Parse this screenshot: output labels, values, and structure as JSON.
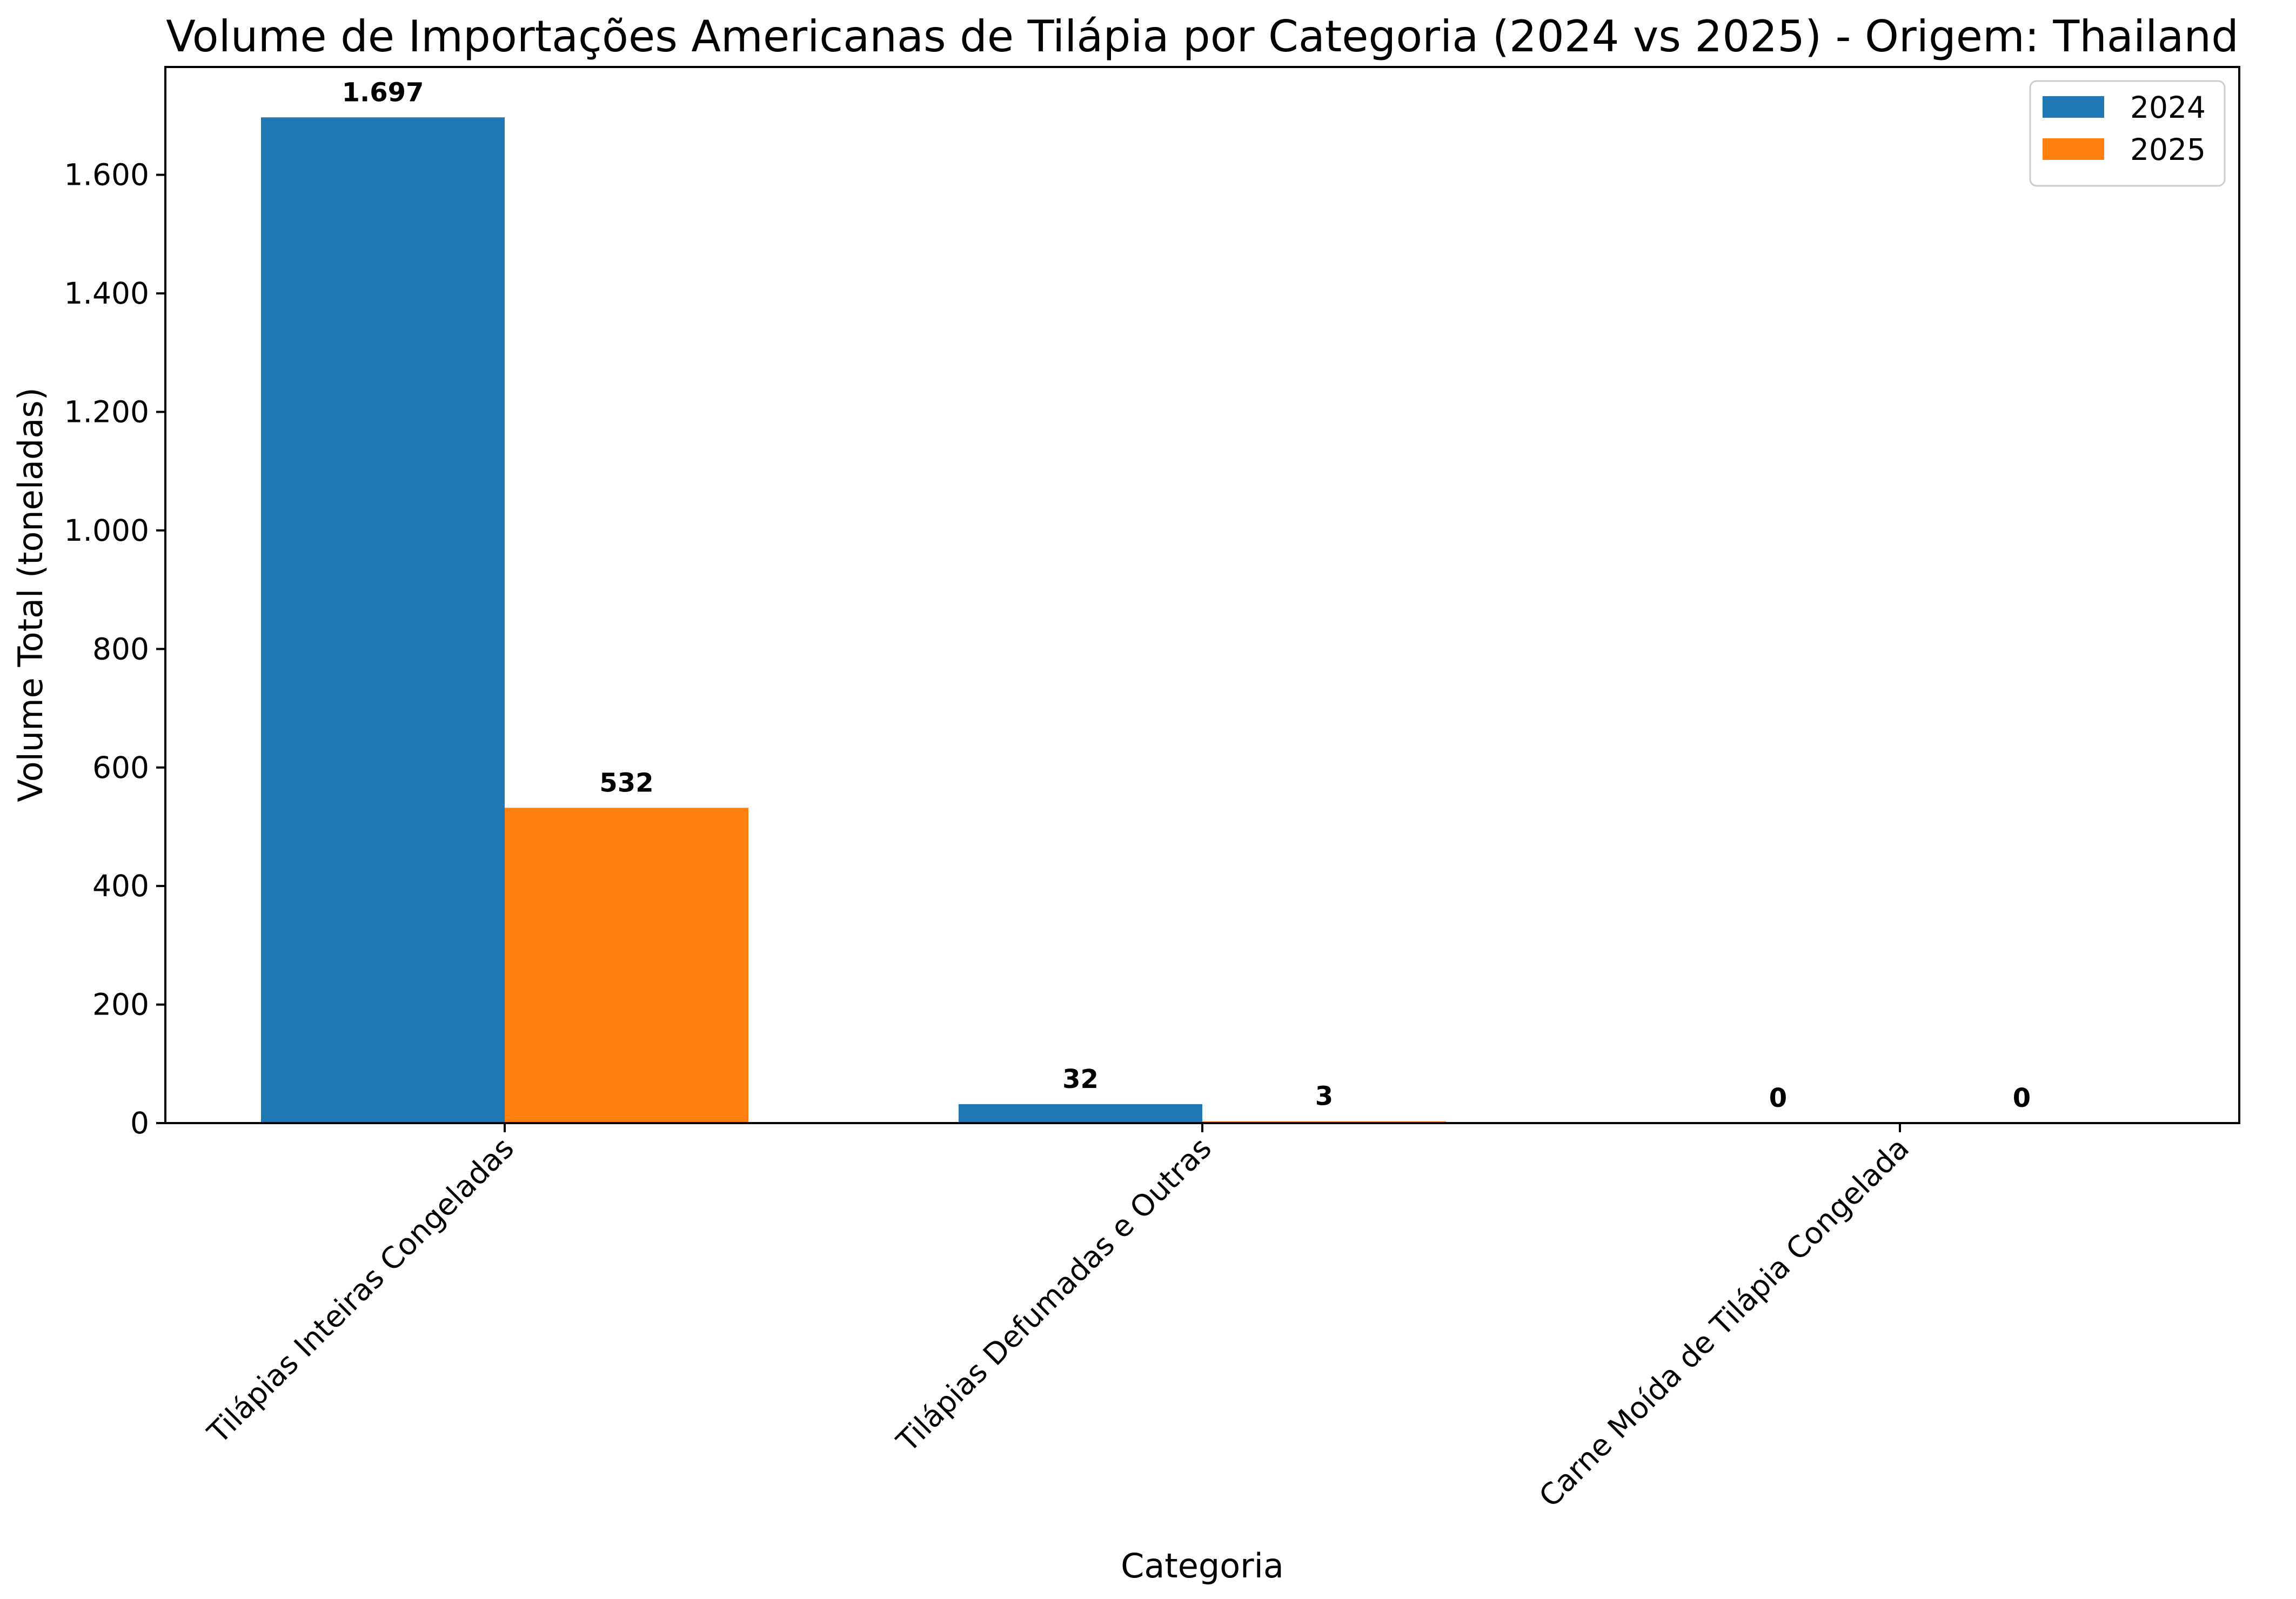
{
  "chart_data": {
    "type": "bar",
    "title": "Volume de Importações Americanas de Tilápia por Categoria (2024 vs 2025) - Origem: Thailand",
    "xlabel": "Categoria",
    "ylabel": "Volume Total (toneladas)",
    "categories": [
      "Tilápias Inteiras Congeladas",
      "Tilápias Defumadas e Outras",
      "Carne Moída de Tilápia Congelada"
    ],
    "series": [
      {
        "name": "2024",
        "color": "#1f77b4",
        "values": [
          1697,
          32,
          0
        ],
        "labels": [
          "1.697",
          "32",
          "0"
        ]
      },
      {
        "name": "2025",
        "color": "#ff7f0e",
        "values": [
          532,
          3,
          0
        ],
        "labels": [
          "532",
          "3",
          "0"
        ]
      }
    ],
    "yticks": [
      0,
      200,
      400,
      600,
      800,
      1000,
      1200,
      1400,
      1600
    ],
    "ytick_labels": [
      "0",
      "200",
      "400",
      "600",
      "800",
      "1.000",
      "1.200",
      "1.400",
      "1.600"
    ],
    "ylim": [
      0,
      1782
    ],
    "grid": false,
    "legend_position": "top-right"
  }
}
